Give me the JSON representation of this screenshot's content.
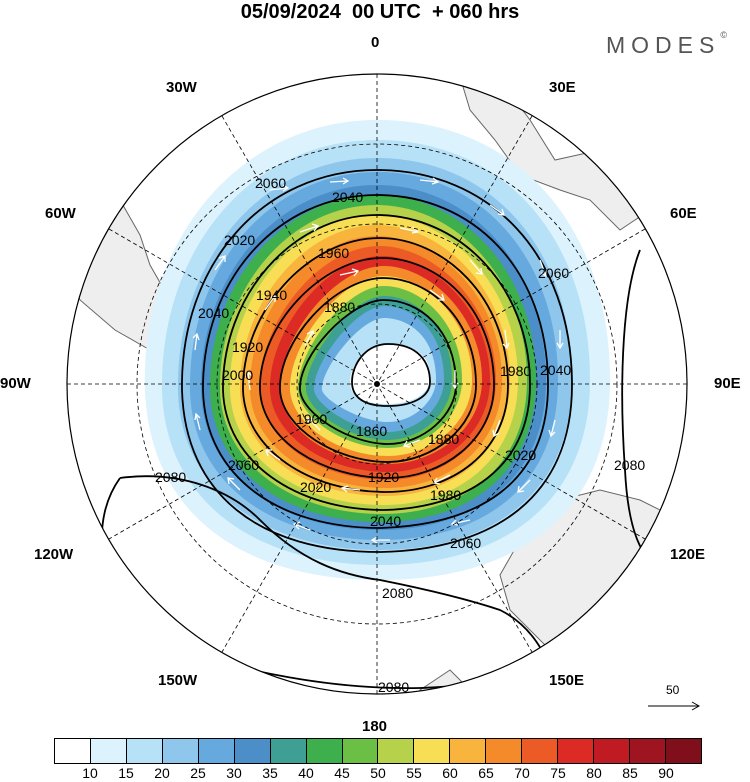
{
  "header": {
    "title": "05/09/2024  00 UTC  + 060 hrs",
    "brand": "MODES",
    "brand_mark": "©"
  },
  "longitude_labels": {
    "lon_0": "0",
    "lon_30e": "30E",
    "lon_60e": "60E",
    "lon_90e": "90E",
    "lon_120e": "120E",
    "lon_150e": "150E",
    "lon_180": "180",
    "lon_150w": "150W",
    "lon_120w": "120W",
    "lon_90w": "90W",
    "lon_60w": "60W",
    "lon_30w": "30W"
  },
  "map": {
    "projection": "polar stereographic, southern hemisphere",
    "field": "wind speed (shaded) with geopotential height contours and wind vectors",
    "contour_labels": [
      "2080",
      "2060",
      "2040",
      "2020",
      "1960",
      "1940",
      "1920",
      "1880",
      "1860",
      "1900",
      "2000",
      "1980"
    ],
    "reference_vector_label": "50",
    "colors": {
      "land": "#eeeeee",
      "coast": "#555555",
      "contour": "#000000",
      "vector": "#ffffff",
      "grid": "#000000"
    }
  },
  "colorbar": {
    "ticks": [
      "10",
      "15",
      "20",
      "25",
      "30",
      "35",
      "40",
      "45",
      "50",
      "55",
      "60",
      "65",
      "70",
      "75",
      "80",
      "85",
      "90"
    ],
    "colors": [
      "#ffffff",
      "#dcf2fc",
      "#b7e1f7",
      "#8fc6ec",
      "#66a9de",
      "#4b8ec8",
      "#3e9f95",
      "#3daf4c",
      "#6bbf45",
      "#b6d24b",
      "#f8de55",
      "#f8b43d",
      "#f48a2a",
      "#ec5a25",
      "#dc2a24",
      "#c01a22",
      "#9e1420",
      "#7f0f1b"
    ]
  }
}
